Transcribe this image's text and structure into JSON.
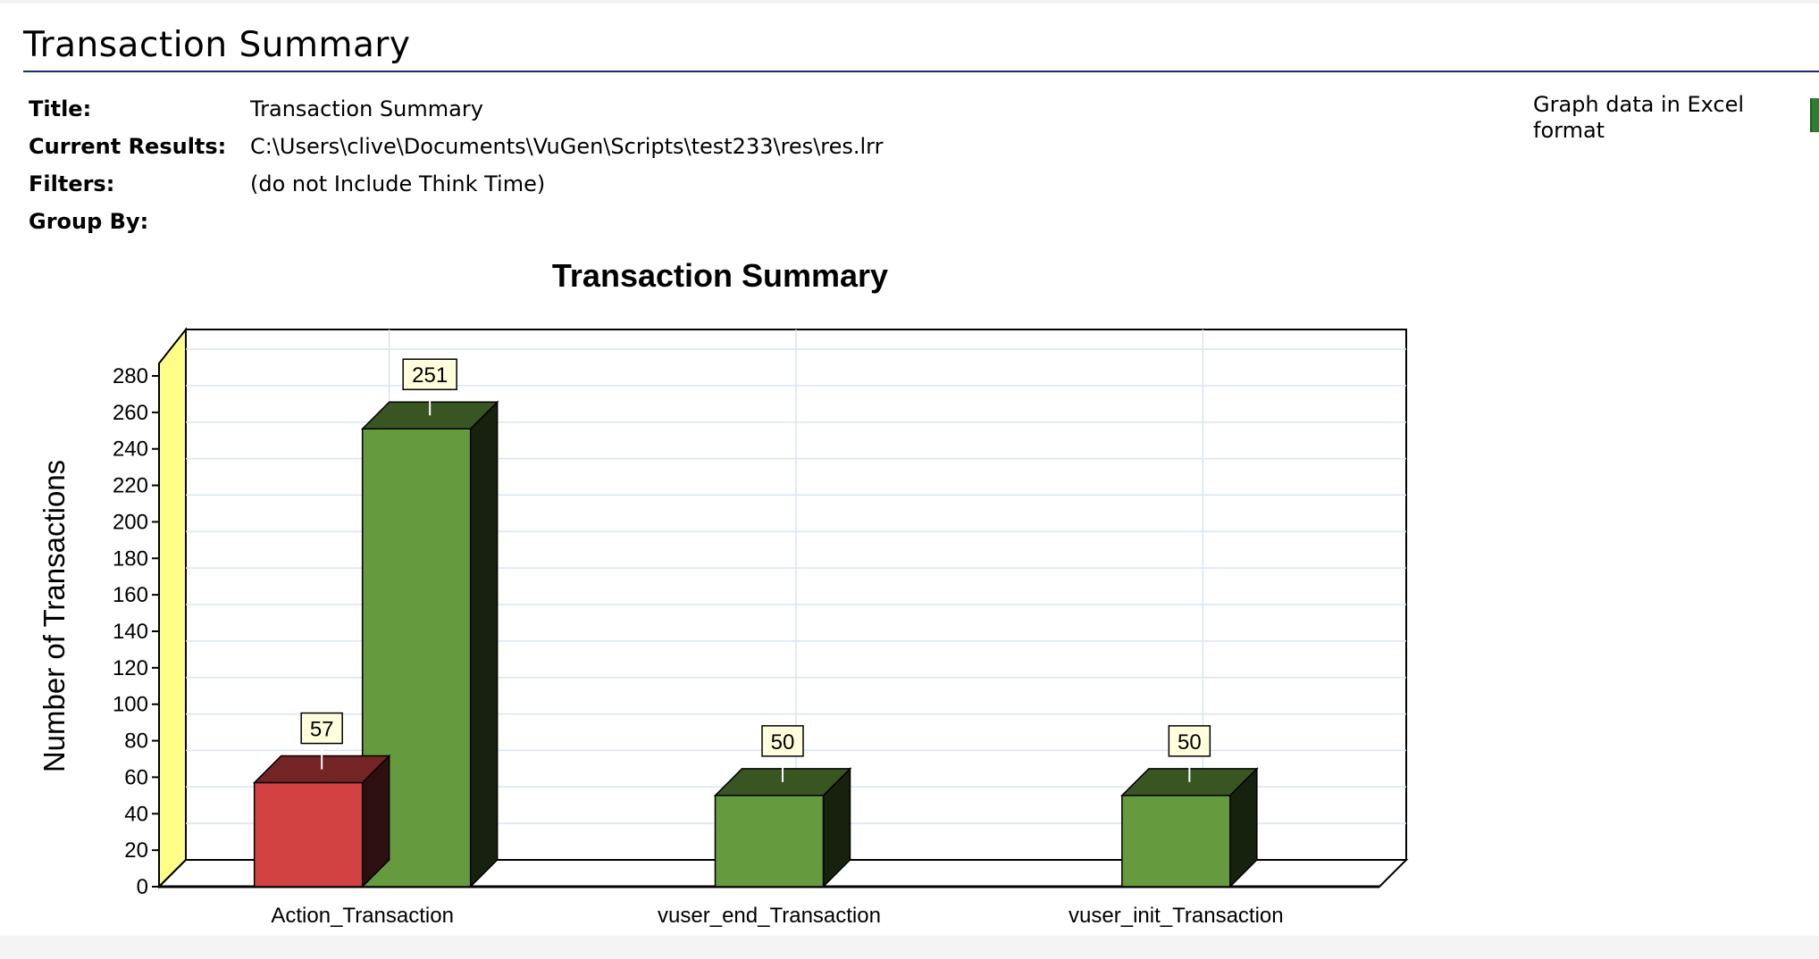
{
  "page": {
    "title": "Transaction Summary",
    "excel_link": "Graph data in Excel format",
    "icon": "excel-icon"
  },
  "meta": [
    {
      "label": "Title:",
      "value": "Transaction Summary"
    },
    {
      "label": "Current Results:",
      "value": "C:\\Users\\clive\\Documents\\VuGen\\Scripts\\test233\\res\\res.lrr"
    },
    {
      "label": "Filters:",
      "value": "(do not Include Think Time)"
    },
    {
      "label": "Group By:",
      "value": ""
    }
  ],
  "chart_data": {
    "type": "bar",
    "title": "Transaction Summary",
    "ylabel": "Number of Transactions",
    "xlabel": "",
    "ylim": [
      0,
      280
    ],
    "ytick_step": 20,
    "grid": true,
    "categories": [
      "Action_Transaction",
      "vuser_end_Transaction",
      "vuser_init_Transaction"
    ],
    "series": [
      {
        "values": [
          57,
          null,
          null
        ],
        "color": "#d34242"
      },
      {
        "values": [
          251,
          50,
          50
        ],
        "color": "#659a3e"
      }
    ],
    "colors": {
      "wall": "#ffff88",
      "gridline": "#d9e4f2",
      "label_box": "#ffffdd"
    }
  }
}
